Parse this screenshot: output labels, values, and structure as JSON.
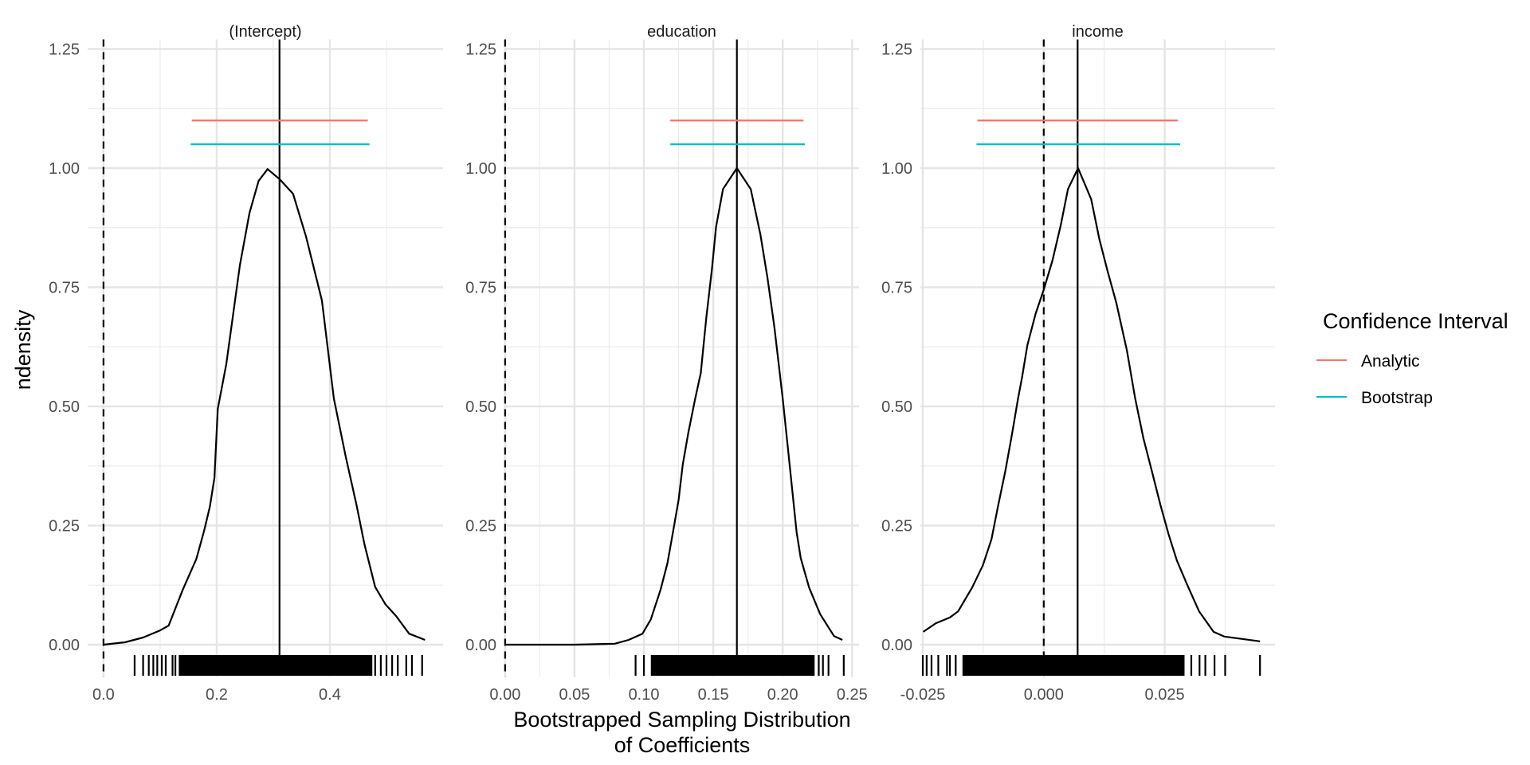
{
  "chart_data": {
    "type": "line",
    "subtype": "faceted density with rug and confidence intervals",
    "xlabel": "Bootstrapped Sampling Distribution\nof Coefficients",
    "xlabel_lines": [
      "Bootstrapped Sampling Distribution",
      "of Coefficients"
    ],
    "ylabel": "ndensity",
    "ylim": [
      0,
      1.25
    ],
    "y_ticks": [
      "0.00",
      "0.25",
      "0.50",
      "0.75",
      "1.00",
      "1.25"
    ],
    "y_tick_values": [
      0,
      0.25,
      0.5,
      0.75,
      1.0,
      1.25
    ],
    "grid": true,
    "legend": {
      "title": "Confidence Interval",
      "position": "right",
      "entries": [
        {
          "label": "Analytic",
          "color": "#F8766D"
        },
        {
          "label": "Bootstrap",
          "color": "#00BFC4"
        }
      ]
    },
    "panels": [
      {
        "title": "(Intercept)",
        "xlim": [
          -0.028,
          0.6
        ],
        "x_ticks": [
          "0.0",
          "0.2",
          "0.4"
        ],
        "x_tick_values": [
          0,
          0.2,
          0.4
        ],
        "x_minor": [
          0.1,
          0.3,
          0.5
        ],
        "zero_line": 0,
        "estimate": 0.311,
        "ci": [
          {
            "name": "Analytic",
            "low": 0.156,
            "high": 0.467,
            "y": 1.1
          },
          {
            "name": "Bootstrap",
            "low": 0.154,
            "high": 0.47,
            "y": 1.05
          }
        ],
        "density": {
          "x": [
            0.0,
            0.038,
            0.07,
            0.1,
            0.115,
            0.14,
            0.164,
            0.178,
            0.188,
            0.196,
            0.202,
            0.217,
            0.241,
            0.258,
            0.274,
            0.29,
            0.311,
            0.335,
            0.358,
            0.386,
            0.407,
            0.428,
            0.447,
            0.461,
            0.48,
            0.498,
            0.517,
            0.54,
            0.568
          ],
          "y": [
            0.0,
            0.005,
            0.015,
            0.03,
            0.04,
            0.115,
            0.18,
            0.24,
            0.29,
            0.35,
            0.495,
            0.589,
            0.796,
            0.906,
            0.973,
            0.998,
            0.977,
            0.946,
            0.856,
            0.722,
            0.517,
            0.395,
            0.294,
            0.211,
            0.121,
            0.085,
            0.06,
            0.023,
            0.01
          ]
        },
        "rug": {
          "isolated": [
            0.055,
            0.07,
            0.08,
            0.088,
            0.095,
            0.103,
            0.11,
            0.122,
            0.127,
            0.48,
            0.49,
            0.5,
            0.51,
            0.52,
            0.535,
            0.545,
            0.563
          ],
          "dense_range": [
            0.133,
            0.475
          ]
        }
      },
      {
        "title": "education",
        "xlim": [
          -0.0005,
          0.255
        ],
        "x_ticks": [
          "0.00",
          "0.05",
          "0.10",
          "0.15",
          "0.20",
          "0.25"
        ],
        "x_tick_values": [
          0,
          0.05,
          0.1,
          0.15,
          0.2,
          0.25
        ],
        "x_minor": [
          0.025,
          0.075,
          0.125,
          0.175,
          0.225
        ],
        "zero_line": 0,
        "estimate": 0.167,
        "ci": [
          {
            "name": "Analytic",
            "low": 0.119,
            "high": 0.215,
            "y": 1.1
          },
          {
            "name": "Bootstrap",
            "low": 0.119,
            "high": 0.216,
            "y": 1.05
          }
        ],
        "density": {
          "x": [
            0.0,
            0.05,
            0.079,
            0.089,
            0.099,
            0.105,
            0.112,
            0.117,
            0.121,
            0.125,
            0.128,
            0.132,
            0.137,
            0.141,
            0.145,
            0.149,
            0.152,
            0.157,
            0.167,
            0.177,
            0.184,
            0.189,
            0.194,
            0.2,
            0.204,
            0.207,
            0.21,
            0.213,
            0.219,
            0.227,
            0.237,
            0.243
          ],
          "y": [
            0.0,
            0.0,
            0.002,
            0.01,
            0.023,
            0.053,
            0.115,
            0.171,
            0.237,
            0.304,
            0.378,
            0.445,
            0.517,
            0.57,
            0.687,
            0.788,
            0.877,
            0.956,
            1.0,
            0.956,
            0.86,
            0.771,
            0.666,
            0.517,
            0.405,
            0.321,
            0.237,
            0.182,
            0.12,
            0.064,
            0.018,
            0.01
          ]
        },
        "rug": {
          "isolated": [
            0.094,
            0.1,
            0.226,
            0.229,
            0.233,
            0.244
          ],
          "dense_range": [
            0.105,
            0.223
          ]
        }
      },
      {
        "title": "income",
        "xlim": [
          -0.0255,
          0.0478
        ],
        "x_ticks": [
          "-0.025",
          "0.000",
          "0.025"
        ],
        "x_tick_values": [
          -0.025,
          0,
          0.025
        ],
        "x_minor": [
          -0.0125,
          0.0125,
          0.0375
        ],
        "zero_line": 0,
        "estimate": 0.007,
        "ci": [
          {
            "name": "Analytic",
            "low": -0.0137,
            "high": 0.0277,
            "y": 1.1
          },
          {
            "name": "Bootstrap",
            "low": -0.0139,
            "high": 0.0282,
            "y": 1.05
          }
        ],
        "density": {
          "x": [
            -0.0249,
            -0.0223,
            -0.0194,
            -0.0177,
            -0.0148,
            -0.0126,
            -0.0108,
            -0.0095,
            -0.0079,
            -0.0065,
            -0.0053,
            -0.0045,
            -0.0034,
            -0.0017,
            0.0,
            0.0018,
            0.0035,
            0.005,
            0.0071,
            0.0098,
            0.0115,
            0.0132,
            0.015,
            0.0172,
            0.0189,
            0.0206,
            0.0223,
            0.0241,
            0.0258,
            0.0275,
            0.0296,
            0.0321,
            0.0351,
            0.0373,
            0.0447
          ],
          "y": [
            0.027,
            0.045,
            0.057,
            0.07,
            0.12,
            0.166,
            0.221,
            0.288,
            0.366,
            0.445,
            0.517,
            0.56,
            0.628,
            0.694,
            0.745,
            0.806,
            0.88,
            0.956,
            1.0,
            0.935,
            0.851,
            0.784,
            0.717,
            0.617,
            0.517,
            0.433,
            0.366,
            0.294,
            0.232,
            0.177,
            0.127,
            0.07,
            0.027,
            0.017,
            0.007
          ]
        },
        "rug": {
          "isolated": [
            -0.025,
            -0.0242,
            -0.0232,
            -0.0218,
            -0.02,
            -0.0194,
            -0.0182,
            0.0305,
            0.0322,
            0.0334,
            0.0353,
            0.0375,
            0.0447
          ],
          "dense_range": [
            -0.0168,
            0.0291
          ]
        }
      }
    ]
  }
}
